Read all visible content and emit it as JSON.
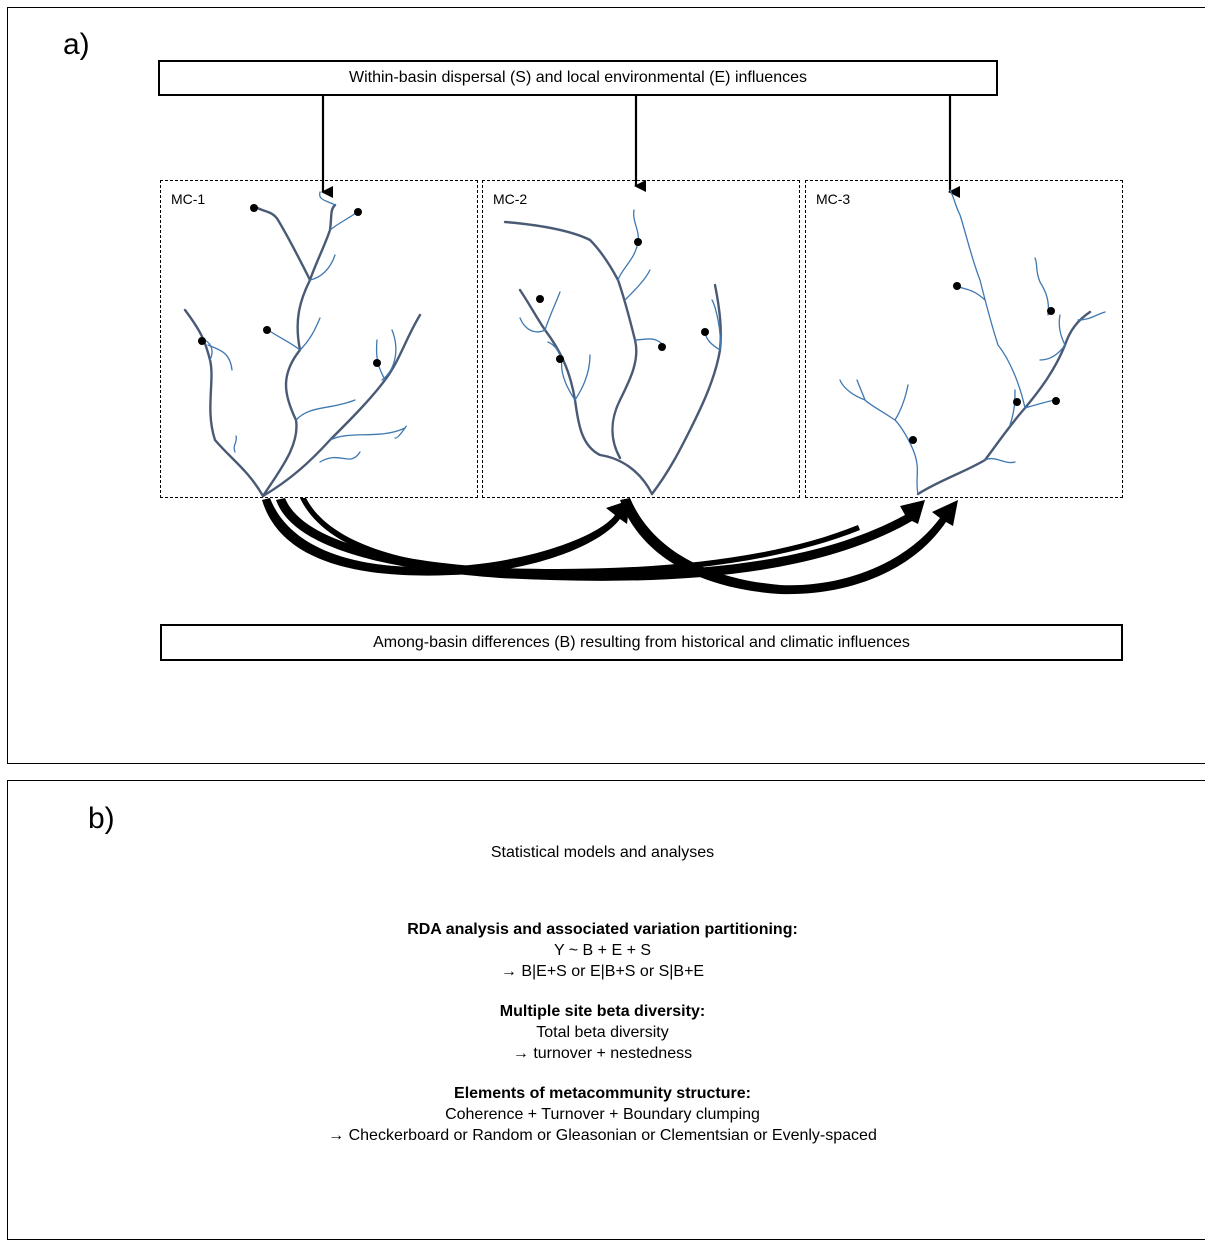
{
  "panel_a": {
    "label": "a)",
    "top_bar": "Within-basin dispersal (S) and local environmental (E) influences",
    "bottom_bar": "Among-basin differences (B) resulting from historical and climatic influences",
    "basins": [
      "MC-1",
      "MC-2",
      "MC-3"
    ]
  },
  "panel_b": {
    "label": "b)",
    "heading": "Statistical models and analyses",
    "rda": {
      "title": "RDA analysis and associated variation partitioning:",
      "line1": "Y ~ B + E + S",
      "line2": "→ B|E+S or E|B+S or S|B+E"
    },
    "beta": {
      "title": "Multiple site beta diversity:",
      "line1": "Total beta diversity",
      "line2": "→ turnover + nestedness"
    },
    "ems": {
      "title": "Elements of metacommunity structure:",
      "line1": "Coherence + Turnover + Boundary clumping",
      "line2": "→ Checkerboard or Random or Gleasonian or Clementsian or Evenly-spaced"
    }
  },
  "colors": {
    "main_river": "#4a5a75",
    "tributary": "#3f78b0",
    "line": "#000000"
  }
}
